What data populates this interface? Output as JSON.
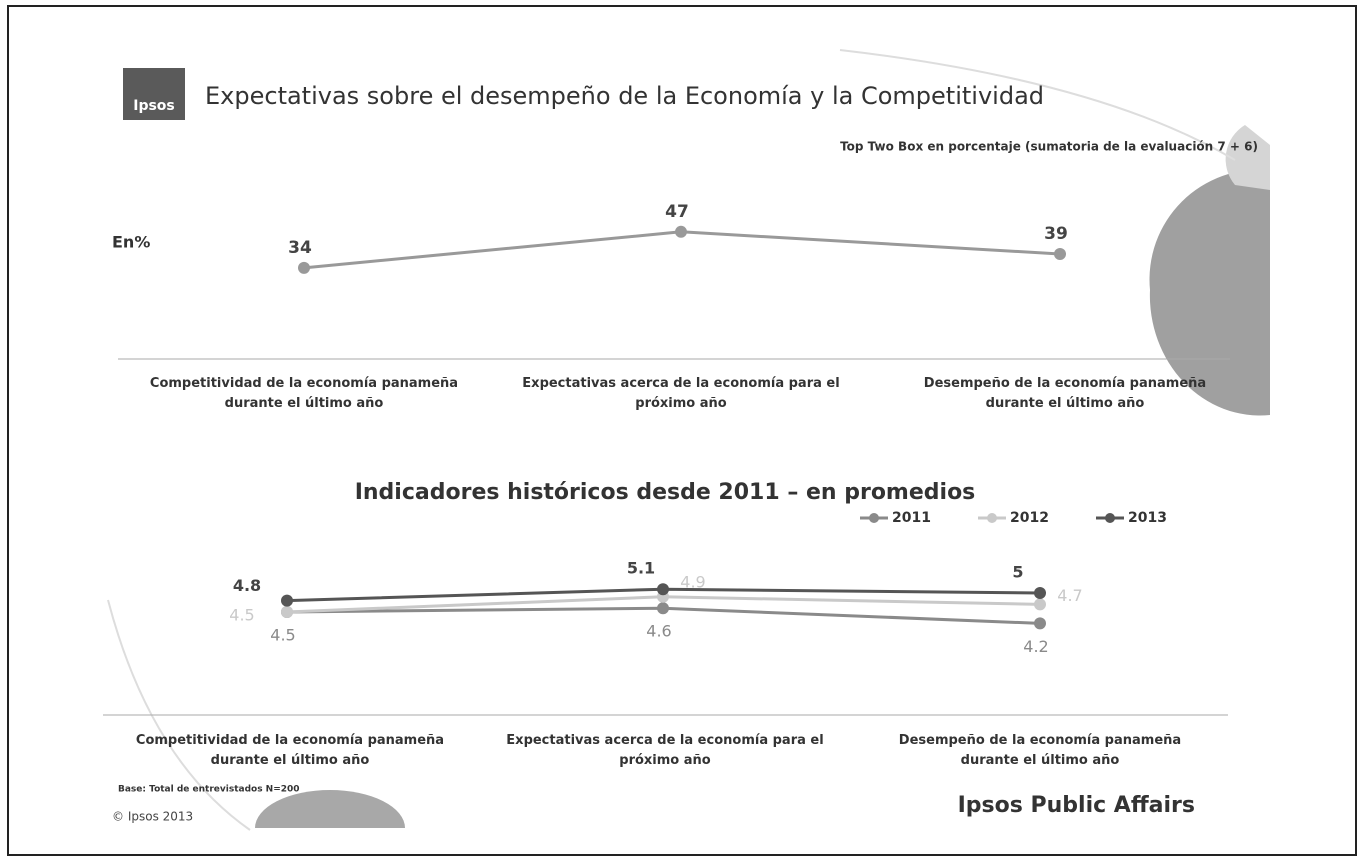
{
  "logo": "Ipsos",
  "title": "Expectativas sobre el desempeño de la Economía y la Competitividad",
  "chart_data": [
    {
      "type": "line",
      "subtitle": "Top Two Box en porcentaje (sumatoria de la evaluación 7 + 6)",
      "y_label": "En%",
      "categories": [
        "Competitividad de la economía panameña\ndurante el último año",
        "Expectativas acerca de la economía para el\npróximo año",
        "Desempeño de la economía panameña\ndurante el último año"
      ],
      "values": [
        34,
        47,
        39
      ],
      "color": "#999999"
    },
    {
      "type": "line",
      "title": "Indicadores históricos desde 2011 – en promedios",
      "categories": [
        "Competitividad de la economía panameña\ndurante el último año",
        "Expectativas acerca de la economía para el\npróximo año",
        "Desempeño de la economía panameña\ndurante el último año"
      ],
      "series": [
        {
          "name": "2011",
          "color": "#8a8a8a",
          "values": [
            4.5,
            4.6,
            4.2
          ]
        },
        {
          "name": "2012",
          "color": "#c9c9c9",
          "values": [
            4.5,
            4.9,
            4.7
          ]
        },
        {
          "name": "2013",
          "color": "#555555",
          "values": [
            4.8,
            5.1,
            5.0
          ]
        }
      ]
    }
  ],
  "footer": {
    "base": "Base: Total de entrevistados N=200",
    "copyright": "© Ipsos 2013",
    "brand": "Ipsos Public Affairs"
  }
}
